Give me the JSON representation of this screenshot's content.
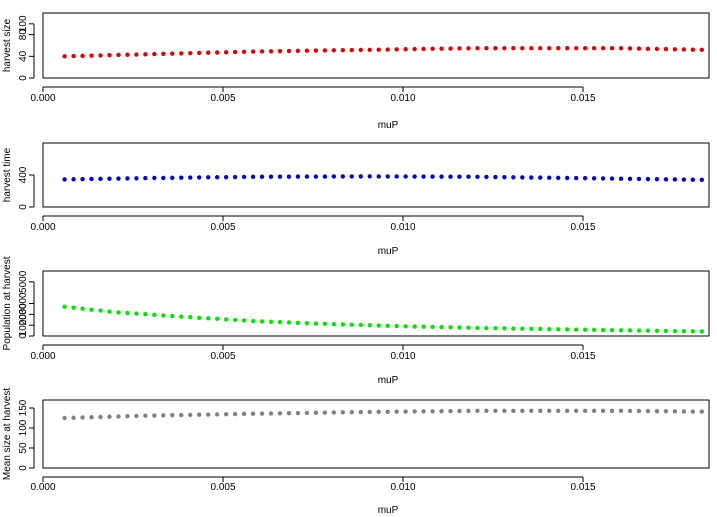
{
  "chart_data": [
    {
      "type": "scatter",
      "xlabel": "muP",
      "ylabel": "harvest size",
      "xlim": [
        0.0,
        0.0185
      ],
      "ylim": [
        0,
        120
      ],
      "xticks": [
        "0.000",
        "0.005",
        "0.010",
        "0.015"
      ],
      "yticks": [
        "0",
        "40",
        "80",
        "100"
      ],
      "color": "#e00000",
      "x_start": 0.0006,
      "x_end": 0.0183,
      "y_points": [
        [
          0.0006,
          40
        ],
        [
          0.003,
          44
        ],
        [
          0.006,
          49
        ],
        [
          0.009,
          52
        ],
        [
          0.012,
          55
        ],
        [
          0.016,
          55
        ],
        [
          0.0183,
          52
        ]
      ]
    },
    {
      "type": "scatter",
      "xlabel": "muP",
      "ylabel": "harvest time",
      "xlim": [
        0.0,
        0.0185
      ],
      "ylim": [
        0,
        800
      ],
      "xticks": [
        "0.000",
        "0.005",
        "0.010",
        "0.015"
      ],
      "yticks": [
        "0",
        "400"
      ],
      "color": "#0000c8",
      "x_start": 0.0006,
      "x_end": 0.0183,
      "y_points": [
        [
          0.0006,
          345
        ],
        [
          0.003,
          362
        ],
        [
          0.006,
          378
        ],
        [
          0.009,
          383
        ],
        [
          0.012,
          378
        ],
        [
          0.015,
          360
        ],
        [
          0.0183,
          340
        ]
      ]
    },
    {
      "type": "scatter",
      "xlabel": "muP",
      "ylabel": "Population at harvest",
      "xlim": [
        0.0,
        0.0185
      ],
      "ylim": [
        0,
        6000
      ],
      "xticks": [
        "0.000",
        "0.005",
        "0.010",
        "0.015"
      ],
      "yticks": [
        "0",
        "1000",
        "2000",
        "3000",
        "5000"
      ],
      "color": "#00e600",
      "x_start": 0.0006,
      "x_end": 0.0183,
      "y_points": [
        [
          0.0006,
          2700
        ],
        [
          0.002,
          2200
        ],
        [
          0.004,
          1750
        ],
        [
          0.006,
          1350
        ],
        [
          0.008,
          1100
        ],
        [
          0.01,
          900
        ],
        [
          0.012,
          750
        ],
        [
          0.015,
          580
        ],
        [
          0.0183,
          420
        ]
      ]
    },
    {
      "type": "scatter",
      "xlabel": "muP",
      "ylabel": "Mean size at harvest",
      "xlim": [
        0.0,
        0.0185
      ],
      "ylim": [
        0,
        170
      ],
      "xticks": [
        "0.000",
        "0.005",
        "0.010",
        "0.015"
      ],
      "yticks": [
        "0",
        "50",
        "100",
        "150"
      ],
      "color": "#808080",
      "x_start": 0.0006,
      "x_end": 0.0183,
      "y_points": [
        [
          0.0006,
          125
        ],
        [
          0.003,
          131
        ],
        [
          0.006,
          136
        ],
        [
          0.009,
          140
        ],
        [
          0.012,
          143
        ],
        [
          0.016,
          143
        ],
        [
          0.0183,
          141
        ]
      ]
    }
  ]
}
